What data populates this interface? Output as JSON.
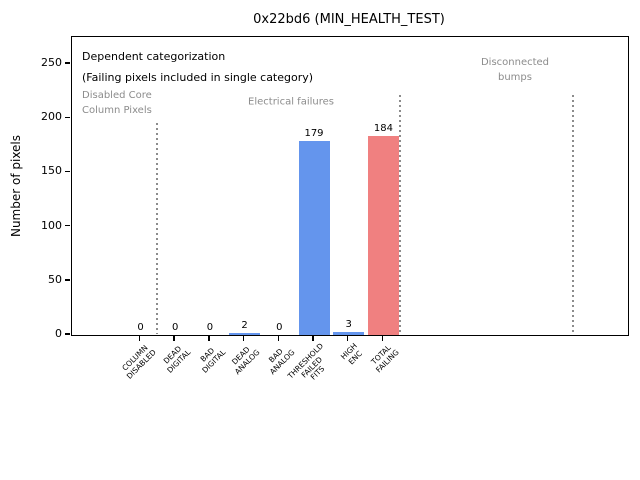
{
  "figure": {
    "title": "0x22bd6 (MIN_HEALTH_TEST)",
    "ylabel": "Number of pixels"
  },
  "annotations": {
    "dependent": "Dependent categorization\n(Failing pixels included in single category)",
    "disabled_core": "Disabled Core\nColumn Pixels",
    "electrical": "Electrical failures",
    "disconnected": "Disconnected\nbumps"
  },
  "chart_data": {
    "type": "bar",
    "title": "0x22bd6 (MIN_HEALTH_TEST)",
    "xlabel": "",
    "ylabel": "Number of pixels",
    "categories": [
      "COLUMN\nDISABLED",
      "DEAD\nDIGITAL",
      "BAD\nDIGITAL",
      "DEAD\nANALOG",
      "BAD\nANALOG",
      "THRESHOLD\nFAILED\nFITS",
      "HIGH\nENC",
      "TOTAL\nFAILING"
    ],
    "values": [
      0,
      0,
      0,
      2,
      0,
      179,
      3,
      184
    ],
    "value_labels": [
      "0",
      "0",
      "0",
      "2",
      "0",
      "179",
      "3",
      "184"
    ],
    "bar_colors": [
      "#6495ed",
      "#6495ed",
      "#6495ed",
      "#6495ed",
      "#6495ed",
      "#6495ed",
      "#6495ed",
      "#f08080"
    ],
    "yticks": [
      0,
      50,
      100,
      150,
      200,
      250
    ],
    "ylim": [
      0,
      275
    ],
    "grid": false,
    "legend": null,
    "sections": [
      {
        "label": "Disabled Core\nColumn Pixels",
        "color": "#8c8c8c"
      },
      {
        "label": "Electrical failures",
        "color": "#8c8c8c"
      },
      {
        "label": "Disconnected\nbumps",
        "color": "#8c8c8c"
      }
    ],
    "colors": {
      "bar_blue": "#6495ed",
      "bar_red": "#f08080",
      "annotation_gray": "#8c8c8c",
      "separator_gray": "#8c8c8c",
      "axis": "#000000",
      "background": "#ffffff"
    }
  }
}
